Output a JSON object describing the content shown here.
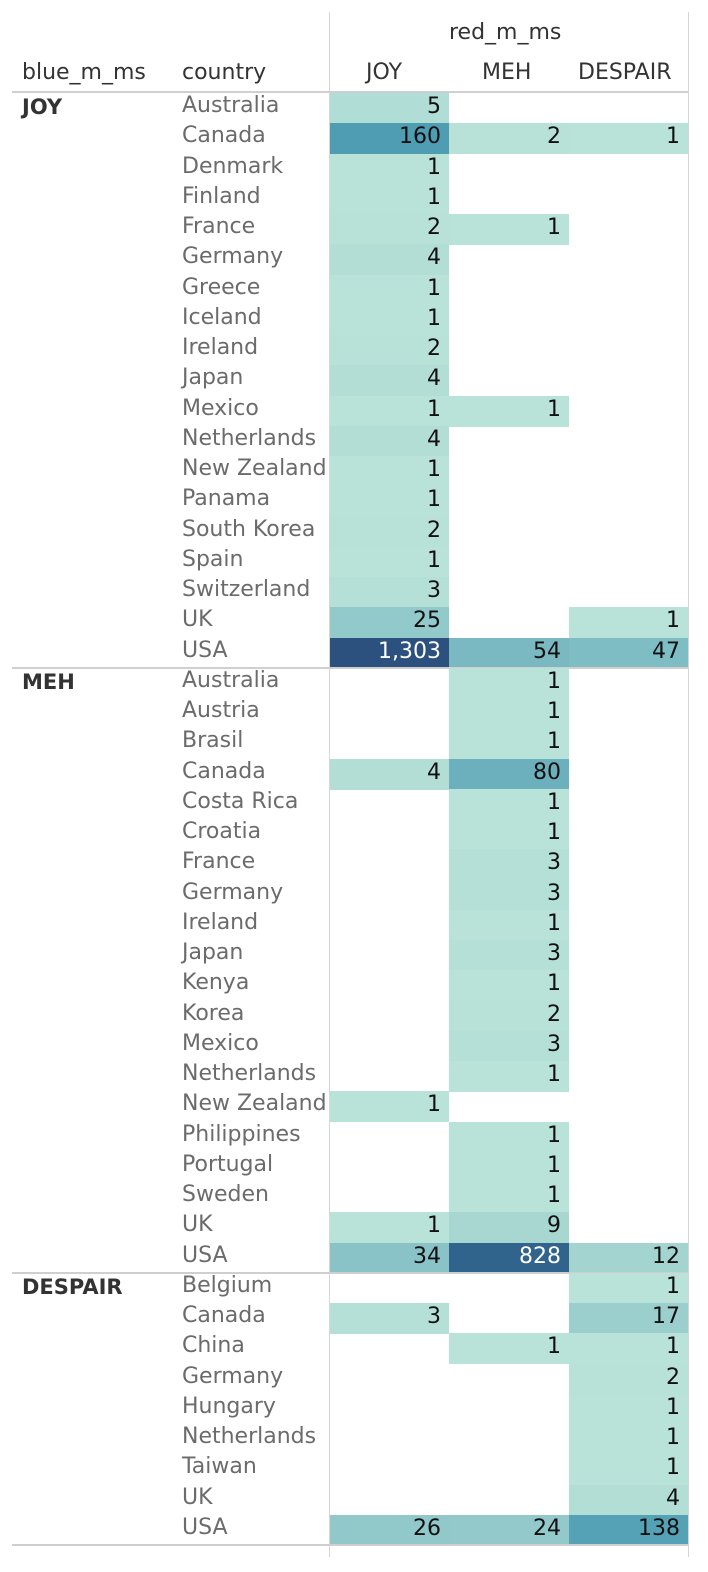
{
  "chart_data": {
    "type": "table",
    "column_dimension_title": "red_m_ms",
    "row_header_1": "blue_m_ms",
    "row_header_2": "country",
    "columns": [
      "JOY",
      "MEH",
      "DESPAIR"
    ],
    "color_scale": {
      "light": "#b9e2d8",
      "mid": "#3b91ad",
      "dark": "#2c517f"
    },
    "groups": [
      {
        "name": "JOY",
        "rows": [
          {
            "country": "Australia",
            "values": [
              5,
              null,
              null
            ],
            "labels": [
              "5",
              "",
              ""
            ]
          },
          {
            "country": "Canada",
            "values": [
              160,
              2,
              1
            ],
            "labels": [
              "160",
              "2",
              "1"
            ]
          },
          {
            "country": "Denmark",
            "values": [
              1,
              null,
              null
            ],
            "labels": [
              "1",
              "",
              ""
            ]
          },
          {
            "country": "Finland",
            "values": [
              1,
              null,
              null
            ],
            "labels": [
              "1",
              "",
              ""
            ]
          },
          {
            "country": "France",
            "values": [
              2,
              1,
              null
            ],
            "labels": [
              "2",
              "1",
              ""
            ]
          },
          {
            "country": "Germany",
            "values": [
              4,
              null,
              null
            ],
            "labels": [
              "4",
              "",
              ""
            ]
          },
          {
            "country": "Greece",
            "values": [
              1,
              null,
              null
            ],
            "labels": [
              "1",
              "",
              ""
            ]
          },
          {
            "country": "Iceland",
            "values": [
              1,
              null,
              null
            ],
            "labels": [
              "1",
              "",
              ""
            ]
          },
          {
            "country": "Ireland",
            "values": [
              2,
              null,
              null
            ],
            "labels": [
              "2",
              "",
              ""
            ]
          },
          {
            "country": "Japan",
            "values": [
              4,
              null,
              null
            ],
            "labels": [
              "4",
              "",
              ""
            ]
          },
          {
            "country": "Mexico",
            "values": [
              1,
              1,
              null
            ],
            "labels": [
              "1",
              "1",
              ""
            ]
          },
          {
            "country": "Netherlands",
            "values": [
              4,
              null,
              null
            ],
            "labels": [
              "4",
              "",
              ""
            ]
          },
          {
            "country": "New Zealand",
            "values": [
              1,
              null,
              null
            ],
            "labels": [
              "1",
              "",
              ""
            ]
          },
          {
            "country": "Panama",
            "values": [
              1,
              null,
              null
            ],
            "labels": [
              "1",
              "",
              ""
            ]
          },
          {
            "country": "South Korea",
            "values": [
              2,
              null,
              null
            ],
            "labels": [
              "2",
              "",
              ""
            ]
          },
          {
            "country": "Spain",
            "values": [
              1,
              null,
              null
            ],
            "labels": [
              "1",
              "",
              ""
            ]
          },
          {
            "country": "Switzerland",
            "values": [
              3,
              null,
              null
            ],
            "labels": [
              "3",
              "",
              ""
            ]
          },
          {
            "country": "UK",
            "values": [
              25,
              null,
              1
            ],
            "labels": [
              "25",
              "",
              "1"
            ]
          },
          {
            "country": "USA",
            "values": [
              1303,
              54,
              47
            ],
            "labels": [
              "1,303",
              "54",
              "47"
            ]
          }
        ]
      },
      {
        "name": "MEH",
        "rows": [
          {
            "country": "Australia",
            "values": [
              null,
              1,
              null
            ],
            "labels": [
              "",
              "1",
              ""
            ]
          },
          {
            "country": "Austria",
            "values": [
              null,
              1,
              null
            ],
            "labels": [
              "",
              "1",
              ""
            ]
          },
          {
            "country": "Brasil",
            "values": [
              null,
              1,
              null
            ],
            "labels": [
              "",
              "1",
              ""
            ]
          },
          {
            "country": "Canada",
            "values": [
              4,
              80,
              null
            ],
            "labels": [
              "4",
              "80",
              ""
            ]
          },
          {
            "country": "Costa Rica",
            "values": [
              null,
              1,
              null
            ],
            "labels": [
              "",
              "1",
              ""
            ]
          },
          {
            "country": "Croatia",
            "values": [
              null,
              1,
              null
            ],
            "labels": [
              "",
              "1",
              ""
            ]
          },
          {
            "country": "France",
            "values": [
              null,
              3,
              null
            ],
            "labels": [
              "",
              "3",
              ""
            ]
          },
          {
            "country": "Germany",
            "values": [
              null,
              3,
              null
            ],
            "labels": [
              "",
              "3",
              ""
            ]
          },
          {
            "country": "Ireland",
            "values": [
              null,
              1,
              null
            ],
            "labels": [
              "",
              "1",
              ""
            ]
          },
          {
            "country": "Japan",
            "values": [
              null,
              3,
              null
            ],
            "labels": [
              "",
              "3",
              ""
            ]
          },
          {
            "country": "Kenya",
            "values": [
              null,
              1,
              null
            ],
            "labels": [
              "",
              "1",
              ""
            ]
          },
          {
            "country": "Korea",
            "values": [
              null,
              2,
              null
            ],
            "labels": [
              "",
              "2",
              ""
            ]
          },
          {
            "country": "Mexico",
            "values": [
              null,
              3,
              null
            ],
            "labels": [
              "",
              "3",
              ""
            ]
          },
          {
            "country": "Netherlands",
            "values": [
              null,
              1,
              null
            ],
            "labels": [
              "",
              "1",
              ""
            ]
          },
          {
            "country": "New Zealand",
            "values": [
              1,
              null,
              null
            ],
            "labels": [
              "1",
              "",
              ""
            ]
          },
          {
            "country": "Philippines",
            "values": [
              null,
              1,
              null
            ],
            "labels": [
              "",
              "1",
              ""
            ]
          },
          {
            "country": "Portugal",
            "values": [
              null,
              1,
              null
            ],
            "labels": [
              "",
              "1",
              ""
            ]
          },
          {
            "country": "Sweden",
            "values": [
              null,
              1,
              null
            ],
            "labels": [
              "",
              "1",
              ""
            ]
          },
          {
            "country": "UK",
            "values": [
              1,
              9,
              null
            ],
            "labels": [
              "1",
              "9",
              ""
            ]
          },
          {
            "country": "USA",
            "values": [
              34,
              828,
              12
            ],
            "labels": [
              "34",
              "828",
              "12"
            ]
          }
        ]
      },
      {
        "name": "DESPAIR",
        "rows": [
          {
            "country": "Belgium",
            "values": [
              null,
              null,
              1
            ],
            "labels": [
              "",
              "",
              "1"
            ]
          },
          {
            "country": "Canada",
            "values": [
              3,
              null,
              17
            ],
            "labels": [
              "3",
              "",
              "17"
            ]
          },
          {
            "country": "China",
            "values": [
              null,
              1,
              1
            ],
            "labels": [
              "",
              "1",
              "1"
            ]
          },
          {
            "country": "Germany",
            "values": [
              null,
              null,
              2
            ],
            "labels": [
              "",
              "",
              "2"
            ]
          },
          {
            "country": "Hungary",
            "values": [
              null,
              null,
              1
            ],
            "labels": [
              "",
              "",
              "1"
            ]
          },
          {
            "country": "Netherlands",
            "values": [
              null,
              null,
              1
            ],
            "labels": [
              "",
              "",
              "1"
            ]
          },
          {
            "country": "Taiwan",
            "values": [
              null,
              null,
              1
            ],
            "labels": [
              "",
              "",
              "1"
            ]
          },
          {
            "country": "UK",
            "values": [
              null,
              null,
              4
            ],
            "labels": [
              "",
              "",
              "4"
            ]
          },
          {
            "country": "USA",
            "values": [
              26,
              24,
              138
            ],
            "labels": [
              "26",
              "24",
              "138"
            ]
          }
        ]
      }
    ]
  }
}
